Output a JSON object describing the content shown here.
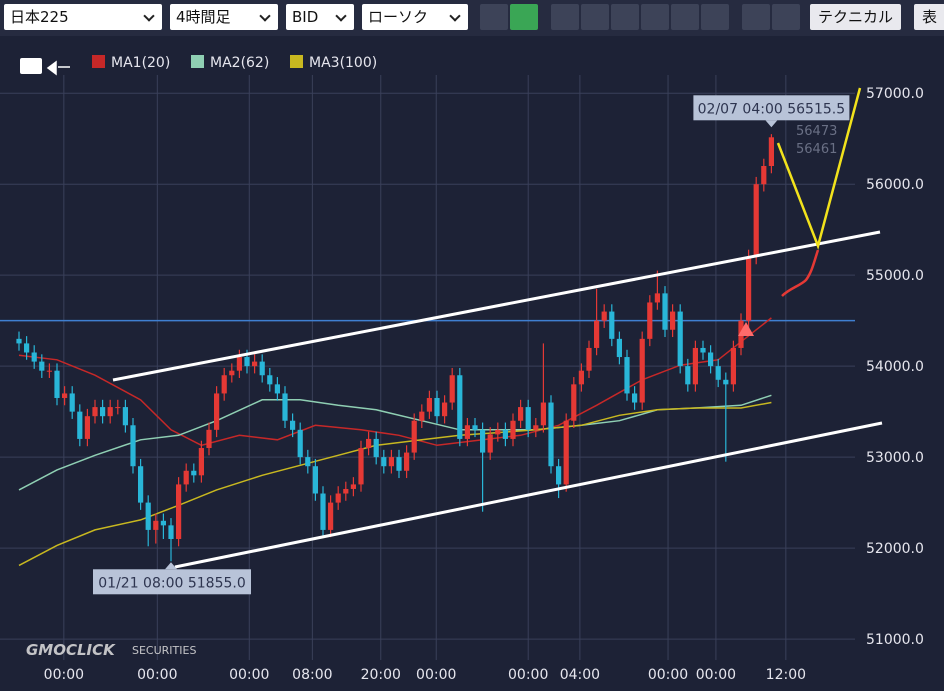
{
  "toolbar": {
    "symbol": "日本225",
    "timeframe": "4時間足",
    "price_type": "BID",
    "chart_style": "ローソク",
    "technical": "テクニカル",
    "table": "表"
  },
  "watermark": {
    "brand": "GMOCLICK",
    "sub": "SECURITIES"
  },
  "chart_data": {
    "type": "candlestick",
    "up_color": "#e53935",
    "down_color": "#29b6d8",
    "xlim": [
      -2.5,
      110
    ],
    "ylim": [
      50770,
      57530
    ],
    "yticks": [
      {
        "value": 51000,
        "label": "51000.0"
      },
      {
        "value": 52000,
        "label": "52000.0"
      },
      {
        "value": 53000,
        "label": "53000.0"
      },
      {
        "value": 54000,
        "label": "54000.0"
      },
      {
        "value": 55000,
        "label": "55000.0"
      },
      {
        "value": 56000,
        "label": "56000.0"
      },
      {
        "value": 57000,
        "label": "57000.0"
      }
    ],
    "xticks": [
      {
        "value": 5.9,
        "label": "00:00"
      },
      {
        "value": 18.2,
        "label": "00:00"
      },
      {
        "value": 30.3,
        "label": "00:00"
      },
      {
        "value": 38.6,
        "label": "08:00"
      },
      {
        "value": 47.6,
        "label": "20:00"
      },
      {
        "value": 54.9,
        "label": "00:00"
      },
      {
        "value": 67,
        "label": "00:00"
      },
      {
        "value": 73.8,
        "label": "04:00"
      },
      {
        "value": 85.4,
        "label": "00:00"
      },
      {
        "value": 91.7,
        "label": "00:00"
      },
      {
        "value": 100.9,
        "label": "12:00"
      }
    ],
    "grid": true,
    "open": [
      54300,
      54250,
      54150,
      54050,
      53950,
      53950,
      53650,
      53700,
      53500,
      53200,
      53450,
      53550,
      53450,
      53550,
      53550,
      53350,
      52900,
      52500,
      52200,
      52300,
      52250,
      52100,
      52700,
      52850,
      52800,
      53100,
      53300,
      53700,
      53900,
      53950,
      54100,
      54000,
      54050,
      53900,
      53800,
      53700,
      53400,
      53300,
      53000,
      52900,
      52600,
      52200,
      52500,
      52600,
      52650,
      52700,
      53100,
      53200,
      53000,
      52900,
      53000,
      52850,
      53050,
      53400,
      53500,
      53650,
      53450,
      53600,
      53900,
      53200,
      53350,
      53300,
      53050,
      53250,
      53300,
      53200,
      53400,
      53550,
      53300,
      53350,
      53600,
      52900,
      52700,
      53400,
      53800,
      53950,
      54200,
      54500,
      54600,
      54300,
      54100,
      53700,
      53600,
      54300,
      54700,
      54800,
      54400,
      54600,
      54000,
      53800,
      54200,
      54150,
      54000,
      53850,
      53800,
      54200,
      54500,
      55200,
      56000,
      56200
    ],
    "high": [
      54380,
      54330,
      54230,
      54130,
      54030,
      54030,
      53780,
      53780,
      53580,
      53530,
      53630,
      53630,
      53630,
      53630,
      53630,
      53430,
      52980,
      52580,
      52380,
      52380,
      52330,
      52780,
      52930,
      52930,
      53180,
      53380,
      53780,
      53980,
      54030,
      54180,
      54180,
      54130,
      54130,
      53980,
      53880,
      53780,
      53480,
      53380,
      53080,
      52980,
      52680,
      52580,
      52680,
      52730,
      52780,
      53180,
      53280,
      53280,
      53080,
      53080,
      53080,
      53130,
      53480,
      53580,
      53730,
      53730,
      53680,
      53980,
      53980,
      53430,
      53430,
      53380,
      53330,
      53380,
      53380,
      53480,
      53630,
      53630,
      53430,
      54250,
      53680,
      52980,
      53480,
      53880,
      54030,
      54280,
      54850,
      54680,
      54680,
      54380,
      54180,
      53780,
      54380,
      54780,
      55050,
      54880,
      54680,
      54680,
      54080,
      54280,
      54280,
      54230,
      54080,
      53930,
      54280,
      54580,
      55280,
      56080,
      56280,
      56550
    ],
    "low": [
      54170,
      54070,
      53970,
      53870,
      53870,
      53570,
      53570,
      53420,
      53120,
      53120,
      53370,
      53370,
      53370,
      53470,
      53270,
      52820,
      52420,
      52020,
      52050,
      52100,
      51855,
      52020,
      52620,
      52720,
      52720,
      53020,
      53220,
      53620,
      53820,
      53870,
      53920,
      53920,
      53820,
      53720,
      53620,
      53320,
      53220,
      52920,
      52820,
      52520,
      52120,
      52120,
      52420,
      52520,
      52570,
      52620,
      53020,
      52920,
      52820,
      52820,
      52770,
      52770,
      52970,
      53320,
      53420,
      53370,
      53370,
      53520,
      53120,
      53120,
      53220,
      52400,
      52970,
      53170,
      53120,
      53120,
      53320,
      53220,
      53220,
      53270,
      52820,
      52550,
      52620,
      53320,
      53720,
      53870,
      54120,
      54420,
      54220,
      54020,
      53620,
      53520,
      53520,
      54220,
      54620,
      54320,
      54320,
      53920,
      53720,
      53720,
      54070,
      53920,
      53770,
      52950,
      53720,
      54120,
      54420,
      55120,
      55920,
      56120
    ],
    "close": [
      54250,
      54150,
      54050,
      53950,
      53950,
      53650,
      53700,
      53500,
      53200,
      53450,
      53550,
      53450,
      53550,
      53550,
      53350,
      52900,
      52500,
      52200,
      52300,
      52250,
      52100,
      52700,
      52850,
      52800,
      53100,
      53300,
      53700,
      53900,
      53950,
      54100,
      54000,
      54050,
      53900,
      53800,
      53700,
      53400,
      53300,
      53000,
      52900,
      52600,
      52200,
      52500,
      52600,
      52650,
      52700,
      53100,
      53200,
      53000,
      52900,
      53000,
      52850,
      53050,
      53400,
      53500,
      53650,
      53450,
      53600,
      53900,
      53200,
      53350,
      53300,
      53050,
      53250,
      53300,
      53200,
      53400,
      53550,
      53300,
      53350,
      53600,
      52900,
      52700,
      53400,
      53800,
      53950,
      54200,
      54500,
      54600,
      54300,
      54100,
      53700,
      53600,
      54300,
      54700,
      54800,
      54400,
      54600,
      54000,
      53800,
      54200,
      54150,
      54000,
      53850,
      53800,
      54200,
      54500,
      55200,
      56000,
      56200,
      56515.5
    ],
    "series": [
      {
        "name": "MA1(20)",
        "color": "#c62828",
        "x": [
          0,
          5,
          10,
          16,
          20,
          24,
          29,
          34,
          39,
          45,
          50,
          55,
          61,
          66,
          71,
          76,
          82,
          87,
          92,
          97,
          99
        ],
        "values": [
          54120,
          54070,
          53900,
          53630,
          53300,
          53130,
          53240,
          53190,
          53350,
          53300,
          53240,
          53130,
          53190,
          53240,
          53350,
          53570,
          53850,
          54010,
          54070,
          54400,
          54530
        ]
      },
      {
        "name": "MA2(62)",
        "color": "#8fcfb3",
        "x": [
          0,
          5,
          10,
          16,
          21,
          26,
          32,
          37,
          42,
          47,
          53,
          58,
          63,
          68,
          74,
          79,
          84,
          89,
          95,
          99
        ],
        "values": [
          52640,
          52860,
          53020,
          53190,
          53240,
          53400,
          53630,
          53630,
          53570,
          53520,
          53400,
          53300,
          53300,
          53300,
          53350,
          53400,
          53520,
          53540,
          53570,
          53680
        ]
      },
      {
        "name": "MA3(100)",
        "color": "#c8b820",
        "x": [
          0,
          5,
          10,
          16,
          21,
          26,
          32,
          37,
          42,
          47,
          53,
          58,
          63,
          68,
          74,
          79,
          84,
          89,
          95,
          99
        ],
        "values": [
          51810,
          52030,
          52200,
          52310,
          52470,
          52640,
          52800,
          52910,
          53020,
          53130,
          53190,
          53240,
          53270,
          53300,
          53350,
          53460,
          53520,
          53540,
          53540,
          53600
        ]
      }
    ],
    "hline": 54500,
    "annotations": [
      {
        "x": 99,
        "value": 56515.5,
        "label": "02/07 04:00 56515.5"
      },
      {
        "x": 20,
        "value": 51855,
        "label": "01/21 08:00 51855.0"
      }
    ],
    "faded_labels": [
      "56473",
      "56461"
    ]
  }
}
